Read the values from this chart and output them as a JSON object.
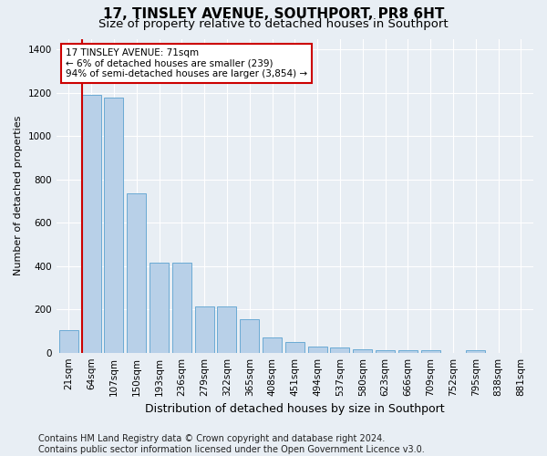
{
  "title": "17, TINSLEY AVENUE, SOUTHPORT, PR8 6HT",
  "subtitle": "Size of property relative to detached houses in Southport",
  "xlabel": "Distribution of detached houses by size in Southport",
  "ylabel": "Number of detached properties",
  "categories": [
    "21sqm",
    "64sqm",
    "107sqm",
    "150sqm",
    "193sqm",
    "236sqm",
    "279sqm",
    "322sqm",
    "365sqm",
    "408sqm",
    "451sqm",
    "494sqm",
    "537sqm",
    "580sqm",
    "623sqm",
    "666sqm",
    "709sqm",
    "752sqm",
    "795sqm",
    "838sqm",
    "881sqm"
  ],
  "values": [
    105,
    1190,
    1180,
    735,
    415,
    415,
    215,
    215,
    155,
    70,
    50,
    30,
    25,
    17,
    12,
    12,
    12,
    0,
    12,
    0,
    0
  ],
  "bar_color": "#b8d0e8",
  "bar_edge_color": "#6aaad4",
  "highlight_bar_index": 1,
  "highlight_color": "#cc0000",
  "annotation_text": "17 TINSLEY AVENUE: 71sqm\n← 6% of detached houses are smaller (239)\n94% of semi-detached houses are larger (3,854) →",
  "annotation_box_color": "#ffffff",
  "annotation_box_edge": "#cc0000",
  "ylim": [
    0,
    1450
  ],
  "yticks": [
    0,
    200,
    400,
    600,
    800,
    1000,
    1200,
    1400
  ],
  "footer": "Contains HM Land Registry data © Crown copyright and database right 2024.\nContains public sector information licensed under the Open Government Licence v3.0.",
  "bg_color": "#e8eef4",
  "plot_bg_color": "#e8eef4",
  "title_fontsize": 11,
  "subtitle_fontsize": 9.5,
  "tick_fontsize": 7.5,
  "ylabel_fontsize": 8,
  "xlabel_fontsize": 9,
  "footer_fontsize": 7
}
